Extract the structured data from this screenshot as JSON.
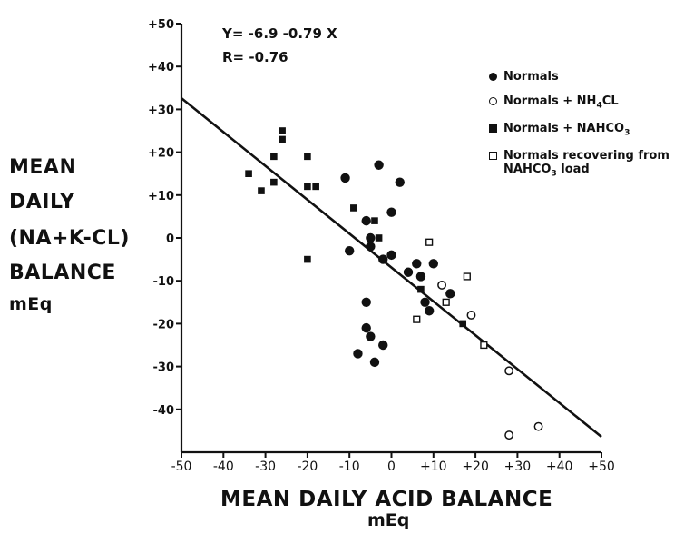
{
  "chart_data": {
    "type": "scatter",
    "xlabel": "MEAN DAILY ACID BALANCE",
    "xunit": "mEq",
    "ylabel_lines": [
      "MEAN",
      "DAILY",
      "(NA+K-CL)",
      "BALANCE"
    ],
    "yunit": "mEq",
    "xlim": [
      -50,
      50
    ],
    "ylim": [
      -50,
      50
    ],
    "x_ticks": [
      "-50",
      "-40",
      "-30",
      "-20",
      "-10",
      "0",
      "+10",
      "+20",
      "+30",
      "+40",
      "+50"
    ],
    "y_ticks": [
      "+50",
      "+40",
      "+30",
      "+20",
      "+10",
      "0",
      "-10",
      "-20",
      "-30",
      "-40"
    ],
    "equation": "Y= -6.9 -0.79 X",
    "r_value": "R= -0.76",
    "regression": {
      "intercept": -6.9,
      "slope": -0.79,
      "x_range": [
        -50,
        50
      ]
    },
    "grid": false,
    "legend_position": "top-right",
    "series": [
      {
        "name": "Normals",
        "marker": "filled-circle",
        "points": [
          [
            -11,
            14
          ],
          [
            -3,
            17
          ],
          [
            2,
            13
          ],
          [
            0,
            6
          ],
          [
            -6,
            4
          ],
          [
            -5,
            0
          ],
          [
            -5,
            -2
          ],
          [
            -10,
            -3
          ],
          [
            -2,
            -5
          ],
          [
            0,
            -4
          ],
          [
            4,
            -8
          ],
          [
            6,
            -6
          ],
          [
            7,
            -9
          ],
          [
            10,
            -6
          ],
          [
            8,
            -15
          ],
          [
            9,
            -17
          ],
          [
            14,
            -13
          ],
          [
            -6,
            -15
          ],
          [
            -6,
            -21
          ],
          [
            -5,
            -23
          ],
          [
            -8,
            -27
          ],
          [
            -2,
            -25
          ],
          [
            -4,
            -29
          ]
        ]
      },
      {
        "name": "Normals + NH4CL",
        "marker": "open-circle",
        "points": [
          [
            12,
            -11
          ],
          [
            19,
            -18
          ],
          [
            28,
            -31
          ],
          [
            35,
            -44
          ],
          [
            28,
            -46
          ]
        ]
      },
      {
        "name": "Normals + NAHCO3",
        "marker": "filled-square",
        "points": [
          [
            -34,
            15
          ],
          [
            -31,
            11
          ],
          [
            -28,
            19
          ],
          [
            -28,
            13
          ],
          [
            -26,
            25
          ],
          [
            -26,
            23
          ],
          [
            -20,
            19
          ],
          [
            -20,
            12
          ],
          [
            -18,
            12
          ],
          [
            -9,
            7
          ],
          [
            -4,
            4
          ],
          [
            -3,
            0
          ],
          [
            -20,
            -5
          ],
          [
            7,
            -12
          ],
          [
            17,
            -20
          ]
        ]
      },
      {
        "name": "Normals recovering from NAHCO3 load",
        "marker": "open-square",
        "points": [
          [
            9,
            -1
          ],
          [
            18,
            -9
          ],
          [
            13,
            -15
          ],
          [
            6,
            -19
          ],
          [
            22,
            -25
          ]
        ]
      }
    ]
  },
  "legend": [
    {
      "marker": "filled-circle",
      "parts": [
        "Normals"
      ]
    },
    {
      "marker": "open-circle",
      "parts": [
        "Normals + NH",
        "4",
        "CL"
      ]
    },
    {
      "marker": "filled-square",
      "parts": [
        "Normals + NAHCO",
        "3"
      ]
    },
    {
      "marker": "open-square",
      "line1": "Normals recovering from",
      "parts": [
        "NAHCO",
        "3",
        " load"
      ]
    }
  ]
}
